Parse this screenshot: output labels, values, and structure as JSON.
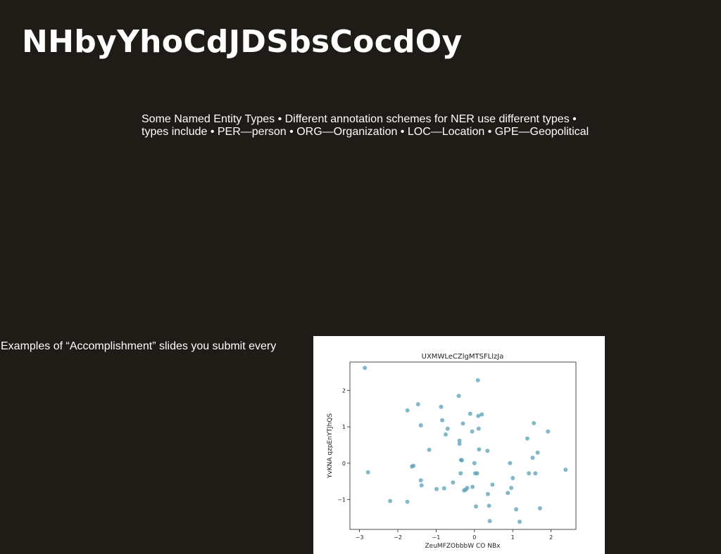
{
  "slide": {
    "title": "NHbyYhoCdJDSbsCocdOy",
    "body_line1": "Some Named Entity Types • Different annotation schemes for NER use different types •",
    "body_line2": "types include • PER—person • ORG—Organization • LOC—Location • GPE—Geopolitical",
    "caption": "Examples of “Accomplishment” slides you submit every"
  },
  "chart_data": {
    "type": "scatter",
    "title": "UXMWLeCZlgMTSFLlzJa",
    "xlabel": "ZeuMFZObbbW CO NBx",
    "ylabel": "YvKNA qzpEnYTJhQS",
    "xlim": [
      -3.25,
      2.65
    ],
    "ylim": [
      -1.82,
      2.78
    ],
    "xticks": [
      -3,
      -2,
      -1,
      0,
      1,
      2
    ],
    "yticks": [
      -1,
      0,
      1,
      2
    ],
    "xtick_labels": [
      "−3",
      "−2",
      "−1",
      "0",
      "1",
      "2"
    ],
    "ytick_labels": [
      "−1",
      "0",
      "1",
      "2"
    ],
    "grid": false,
    "point_color": "#5aa0b8",
    "points": [
      [
        -2.86,
        2.62
      ],
      [
        -2.78,
        -0.25
      ],
      [
        -2.2,
        -1.04
      ],
      [
        -1.75,
        -1.06
      ],
      [
        -1.75,
        1.45
      ],
      [
        -1.47,
        1.62
      ],
      [
        -1.4,
        1.04
      ],
      [
        -1.4,
        -0.47
      ],
      [
        -1.38,
        -0.61
      ],
      [
        -1.63,
        -0.09
      ],
      [
        -1.59,
        -0.07
      ],
      [
        -1.18,
        0.37
      ],
      [
        -0.99,
        -0.71
      ],
      [
        -0.87,
        1.55
      ],
      [
        -0.84,
        1.18
      ],
      [
        -0.79,
        -0.69
      ],
      [
        -0.75,
        0.79
      ],
      [
        -0.7,
        0.95
      ],
      [
        -0.56,
        -0.53
      ],
      [
        -0.41,
        1.85
      ],
      [
        -0.39,
        0.62
      ],
      [
        -0.39,
        0.53
      ],
      [
        -0.35,
        0.09
      ],
      [
        -0.33,
        0.08
      ],
      [
        -0.36,
        -0.28
      ],
      [
        -0.3,
        1.09
      ],
      [
        -0.27,
        -0.75
      ],
      [
        -0.23,
        -0.73
      ],
      [
        -0.19,
        -0.68
      ],
      [
        -0.11,
        1.36
      ],
      [
        -0.06,
        0.87
      ],
      [
        -0.05,
        -0.65
      ],
      [
        0.0,
        0.0
      ],
      [
        0.02,
        -0.28
      ],
      [
        0.04,
        -1.19
      ],
      [
        0.07,
        -0.28
      ],
      [
        0.09,
        2.28
      ],
      [
        0.1,
        1.3
      ],
      [
        0.11,
        0.95
      ],
      [
        0.12,
        0.38
      ],
      [
        0.19,
        1.34
      ],
      [
        0.34,
        0.34
      ],
      [
        0.35,
        -0.85
      ],
      [
        0.38,
        -1.17
      ],
      [
        0.4,
        -1.59
      ],
      [
        0.47,
        -0.59
      ],
      [
        0.87,
        -0.82
      ],
      [
        0.93,
        0.0
      ],
      [
        0.96,
        -0.68
      ],
      [
        1.0,
        -0.41
      ],
      [
        1.09,
        -1.27
      ],
      [
        1.18,
        -1.61
      ],
      [
        1.38,
        0.68
      ],
      [
        1.42,
        -0.28
      ],
      [
        1.52,
        0.15
      ],
      [
        1.55,
        1.1
      ],
      [
        1.59,
        -0.28
      ],
      [
        1.65,
        0.29
      ],
      [
        1.71,
        -1.24
      ],
      [
        1.92,
        0.87
      ],
      [
        2.38,
        -0.18
      ]
    ]
  }
}
